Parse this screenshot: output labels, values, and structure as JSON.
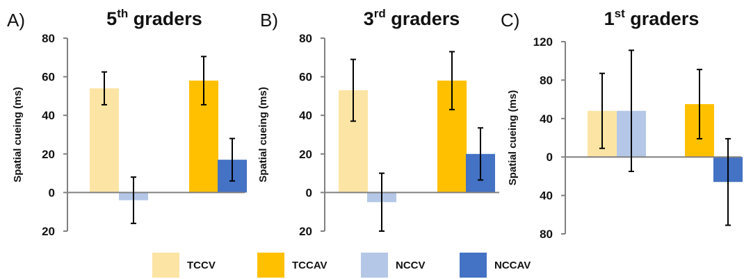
{
  "colors": {
    "TCCV": "#FCE4A4",
    "TCCAV": "#FFC000",
    "NCCV": "#B4C7E7",
    "NCCAV": "#4472C4",
    "axis": "#808080",
    "error_bar": "#000000"
  },
  "legend": {
    "items": [
      {
        "key": "TCCV",
        "label": "TCCV"
      },
      {
        "key": "TCCAV",
        "label": "TCCAV"
      },
      {
        "key": "NCCV",
        "label": "NCCV"
      },
      {
        "key": "NCCAV",
        "label": "NCCAV"
      }
    ]
  },
  "chart_data": [
    {
      "type": "bar",
      "panel": "A)",
      "title": "5th graders",
      "title_parts": {
        "number": "5",
        "suffix": "th",
        "rest": " graders"
      },
      "ylabel": "Spatial cueing (ms)",
      "ylim": [
        -20,
        80
      ],
      "yticks": [
        80,
        60,
        40,
        20,
        0,
        -20
      ],
      "ytick_labels": [
        "80",
        "60",
        "40",
        "20",
        "0",
        "20"
      ],
      "series": [
        {
          "name": "TCCV",
          "value": 54,
          "error": 8.5
        },
        {
          "name": "NCCV",
          "value": -4,
          "error": 12
        },
        {
          "name": "TCCAV",
          "value": 58,
          "error": 12.5
        },
        {
          "name": "NCCAV",
          "value": 17,
          "error": 11
        }
      ]
    },
    {
      "type": "bar",
      "panel": "B)",
      "title": "3rd graders",
      "title_parts": {
        "number": "3",
        "suffix": "rd",
        "rest": " graders"
      },
      "ylabel": "Spatial cueing (ms)",
      "ylim": [
        -20,
        80
      ],
      "yticks": [
        80,
        60,
        40,
        20,
        0,
        -20
      ],
      "ytick_labels": [
        "80",
        "60",
        "40",
        "20",
        "0",
        "20"
      ],
      "series": [
        {
          "name": "TCCV",
          "value": 53,
          "error": 16
        },
        {
          "name": "NCCV",
          "value": -5,
          "error": 15
        },
        {
          "name": "TCCAV",
          "value": 58,
          "error": 15
        },
        {
          "name": "NCCAV",
          "value": 20,
          "error": 13.5
        }
      ]
    },
    {
      "type": "bar",
      "panel": "C)",
      "title": "1st graders",
      "title_parts": {
        "number": "1",
        "suffix": "st",
        "rest": " graders"
      },
      "ylabel": "Spatial cueing (ms)",
      "ylim": [
        -80,
        120
      ],
      "yticks": [
        120,
        80,
        40,
        0,
        -40,
        -80
      ],
      "ytick_labels": [
        "120",
        "80",
        "40",
        "0",
        "40",
        "80"
      ],
      "series": [
        {
          "name": "TCCV",
          "value": 48,
          "error": 39
        },
        {
          "name": "NCCV",
          "value": 48,
          "error": 63
        },
        {
          "name": "TCCAV",
          "value": 55,
          "error": 36
        },
        {
          "name": "NCCAV",
          "value": -26,
          "error": 45
        }
      ]
    }
  ]
}
